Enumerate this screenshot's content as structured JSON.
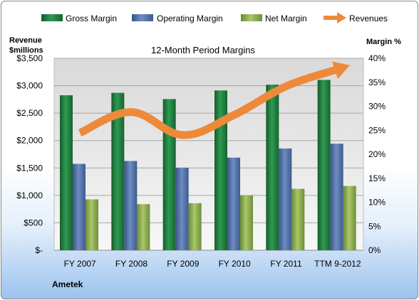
{
  "chart_data": {
    "type": "bar",
    "title": "12-Month Period Margins",
    "categories": [
      "FY 2007",
      "FY 2008",
      "FY 2009",
      "FY 2010",
      "FY 2011",
      "TTM 9-2012"
    ],
    "series": [
      {
        "name": "Gross Margin",
        "type": "bar",
        "axis": "right",
        "unit": "%",
        "values": [
          32.3,
          32.8,
          31.5,
          33.3,
          34.5,
          35.5
        ],
        "color": "#1e7a3c"
      },
      {
        "name": "Operating Margin",
        "type": "bar",
        "axis": "right",
        "unit": "%",
        "values": [
          18.0,
          18.6,
          17.2,
          19.3,
          21.2,
          22.2
        ],
        "color": "#4f6fa8"
      },
      {
        "name": "Net Margin",
        "type": "bar",
        "axis": "right",
        "unit": "%",
        "values": [
          10.6,
          9.6,
          9.8,
          11.4,
          12.8,
          13.4
        ],
        "color": "#8fae55"
      },
      {
        "name": "Revenues",
        "type": "line",
        "axis": "left",
        "unit": "$millions",
        "values": [
          2140,
          2520,
          2100,
          2470,
          2990,
          3300
        ],
        "color": "#ed8a3a"
      }
    ],
    "left_axis": {
      "label_line1": "Revenue",
      "label_line2": "$millions",
      "ylim": [
        0,
        3500
      ],
      "ticks": [
        0,
        500,
        1000,
        1500,
        2000,
        2500,
        3000,
        3500
      ],
      "tick_labels": [
        "$-",
        "$500",
        "$1,000",
        "$1,500",
        "$2,000",
        "$2,500",
        "$3,000",
        "$3,500"
      ]
    },
    "right_axis": {
      "label": "Margin %",
      "ylim": [
        0,
        40
      ],
      "ticks": [
        0,
        5,
        10,
        15,
        20,
        25,
        30,
        35,
        40
      ],
      "tick_labels": [
        "0%",
        "5%",
        "10%",
        "15%",
        "20%",
        "25%",
        "30%",
        "35%",
        "40%"
      ]
    },
    "legend_position": "top",
    "grid": true,
    "footer": "Ametek"
  }
}
